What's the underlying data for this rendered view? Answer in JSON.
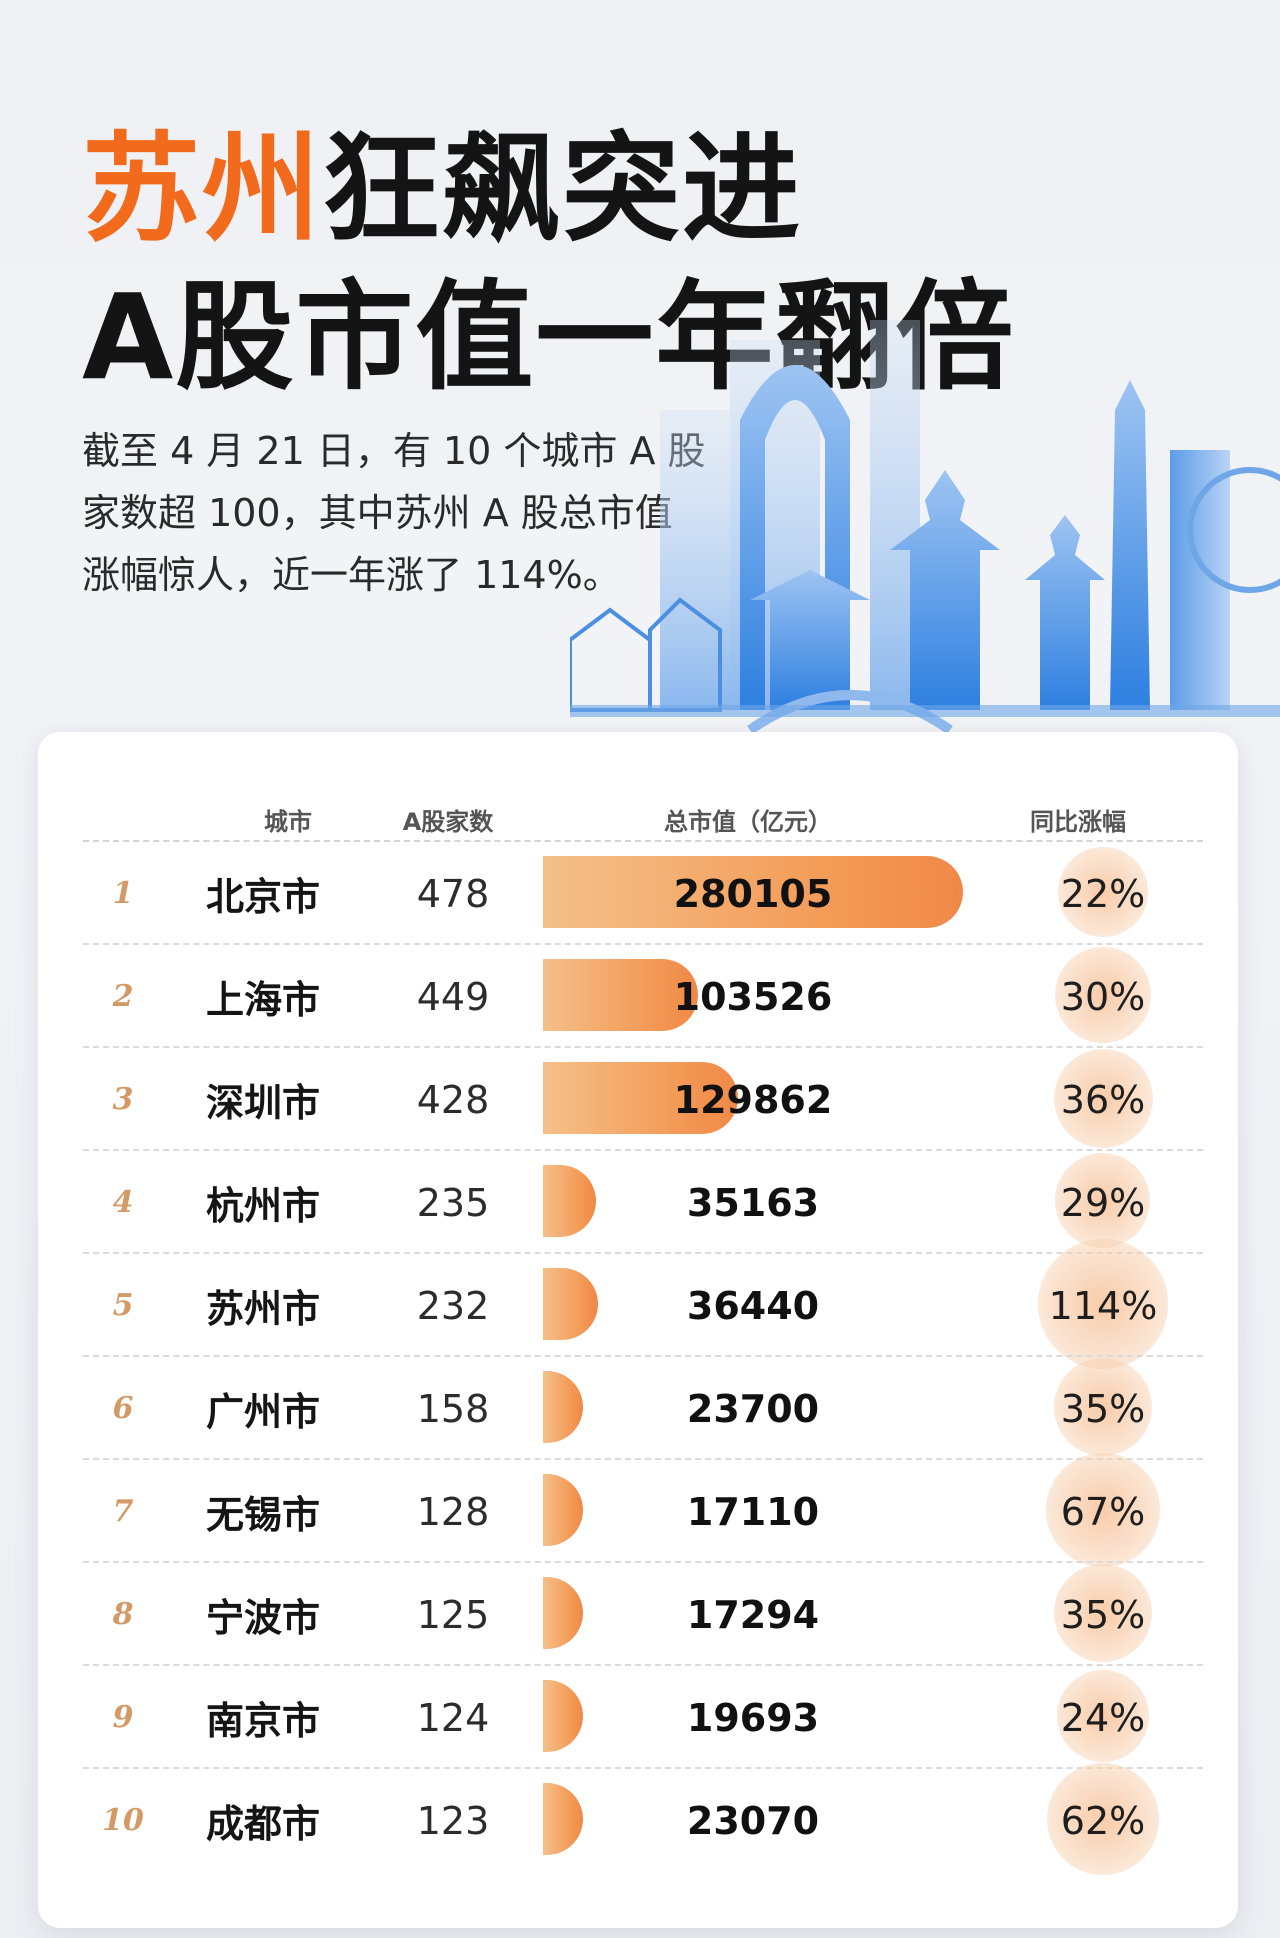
{
  "title": {
    "accent": "苏州",
    "rest": "狂飙突进",
    "line2": "A股市值一年翻倍"
  },
  "description": {
    "line1": "截至 4 月 21 日，有 10 个城市 A 股",
    "line2": "家数超 100，其中苏州 A 股总市值",
    "line3": "涨幅惊人，近一年涨了 114%。"
  },
  "colors": {
    "accent": "#f26a1b",
    "bar": "#f39a56",
    "bubble": "#f6ba8c",
    "rank": "#d49a66"
  },
  "chart_data": {
    "type": "table",
    "headers": {
      "city": "城市",
      "count": "A股家数",
      "market_cap": "总市值（亿元）",
      "growth": "同比涨幅"
    },
    "bar_max": 280105,
    "rows": [
      {
        "rank": "1",
        "city": "北京市",
        "count": "478",
        "market_cap": 280105,
        "market_cap_label": "280105",
        "growth": 22,
        "growth_label": "22%"
      },
      {
        "rank": "2",
        "city": "上海市",
        "count": "449",
        "market_cap": 103526,
        "market_cap_label": "103526",
        "growth": 30,
        "growth_label": "30%"
      },
      {
        "rank": "3",
        "city": "深圳市",
        "count": "428",
        "market_cap": 129862,
        "market_cap_label": "129862",
        "growth": 36,
        "growth_label": "36%"
      },
      {
        "rank": "4",
        "city": "杭州市",
        "count": "235",
        "market_cap": 35163,
        "market_cap_label": "35163",
        "growth": 29,
        "growth_label": "29%"
      },
      {
        "rank": "5",
        "city": "苏州市",
        "count": "232",
        "market_cap": 36440,
        "market_cap_label": "36440",
        "growth": 114,
        "growth_label": "114%"
      },
      {
        "rank": "6",
        "city": "广州市",
        "count": "158",
        "market_cap": 23700,
        "market_cap_label": "23700",
        "growth": 35,
        "growth_label": "35%"
      },
      {
        "rank": "7",
        "city": "无锡市",
        "count": "128",
        "market_cap": 17110,
        "market_cap_label": "17110",
        "growth": 67,
        "growth_label": "67%"
      },
      {
        "rank": "8",
        "city": "宁波市",
        "count": "125",
        "market_cap": 17294,
        "market_cap_label": "17294",
        "growth": 35,
        "growth_label": "35%"
      },
      {
        "rank": "9",
        "city": "南京市",
        "count": "124",
        "market_cap": 19693,
        "market_cap_label": "19693",
        "growth": 24,
        "growth_label": "24%"
      },
      {
        "rank": "10",
        "city": "成都市",
        "count": "123",
        "market_cap": 23070,
        "market_cap_label": "23070",
        "growth": 62,
        "growth_label": "62%"
      }
    ]
  }
}
